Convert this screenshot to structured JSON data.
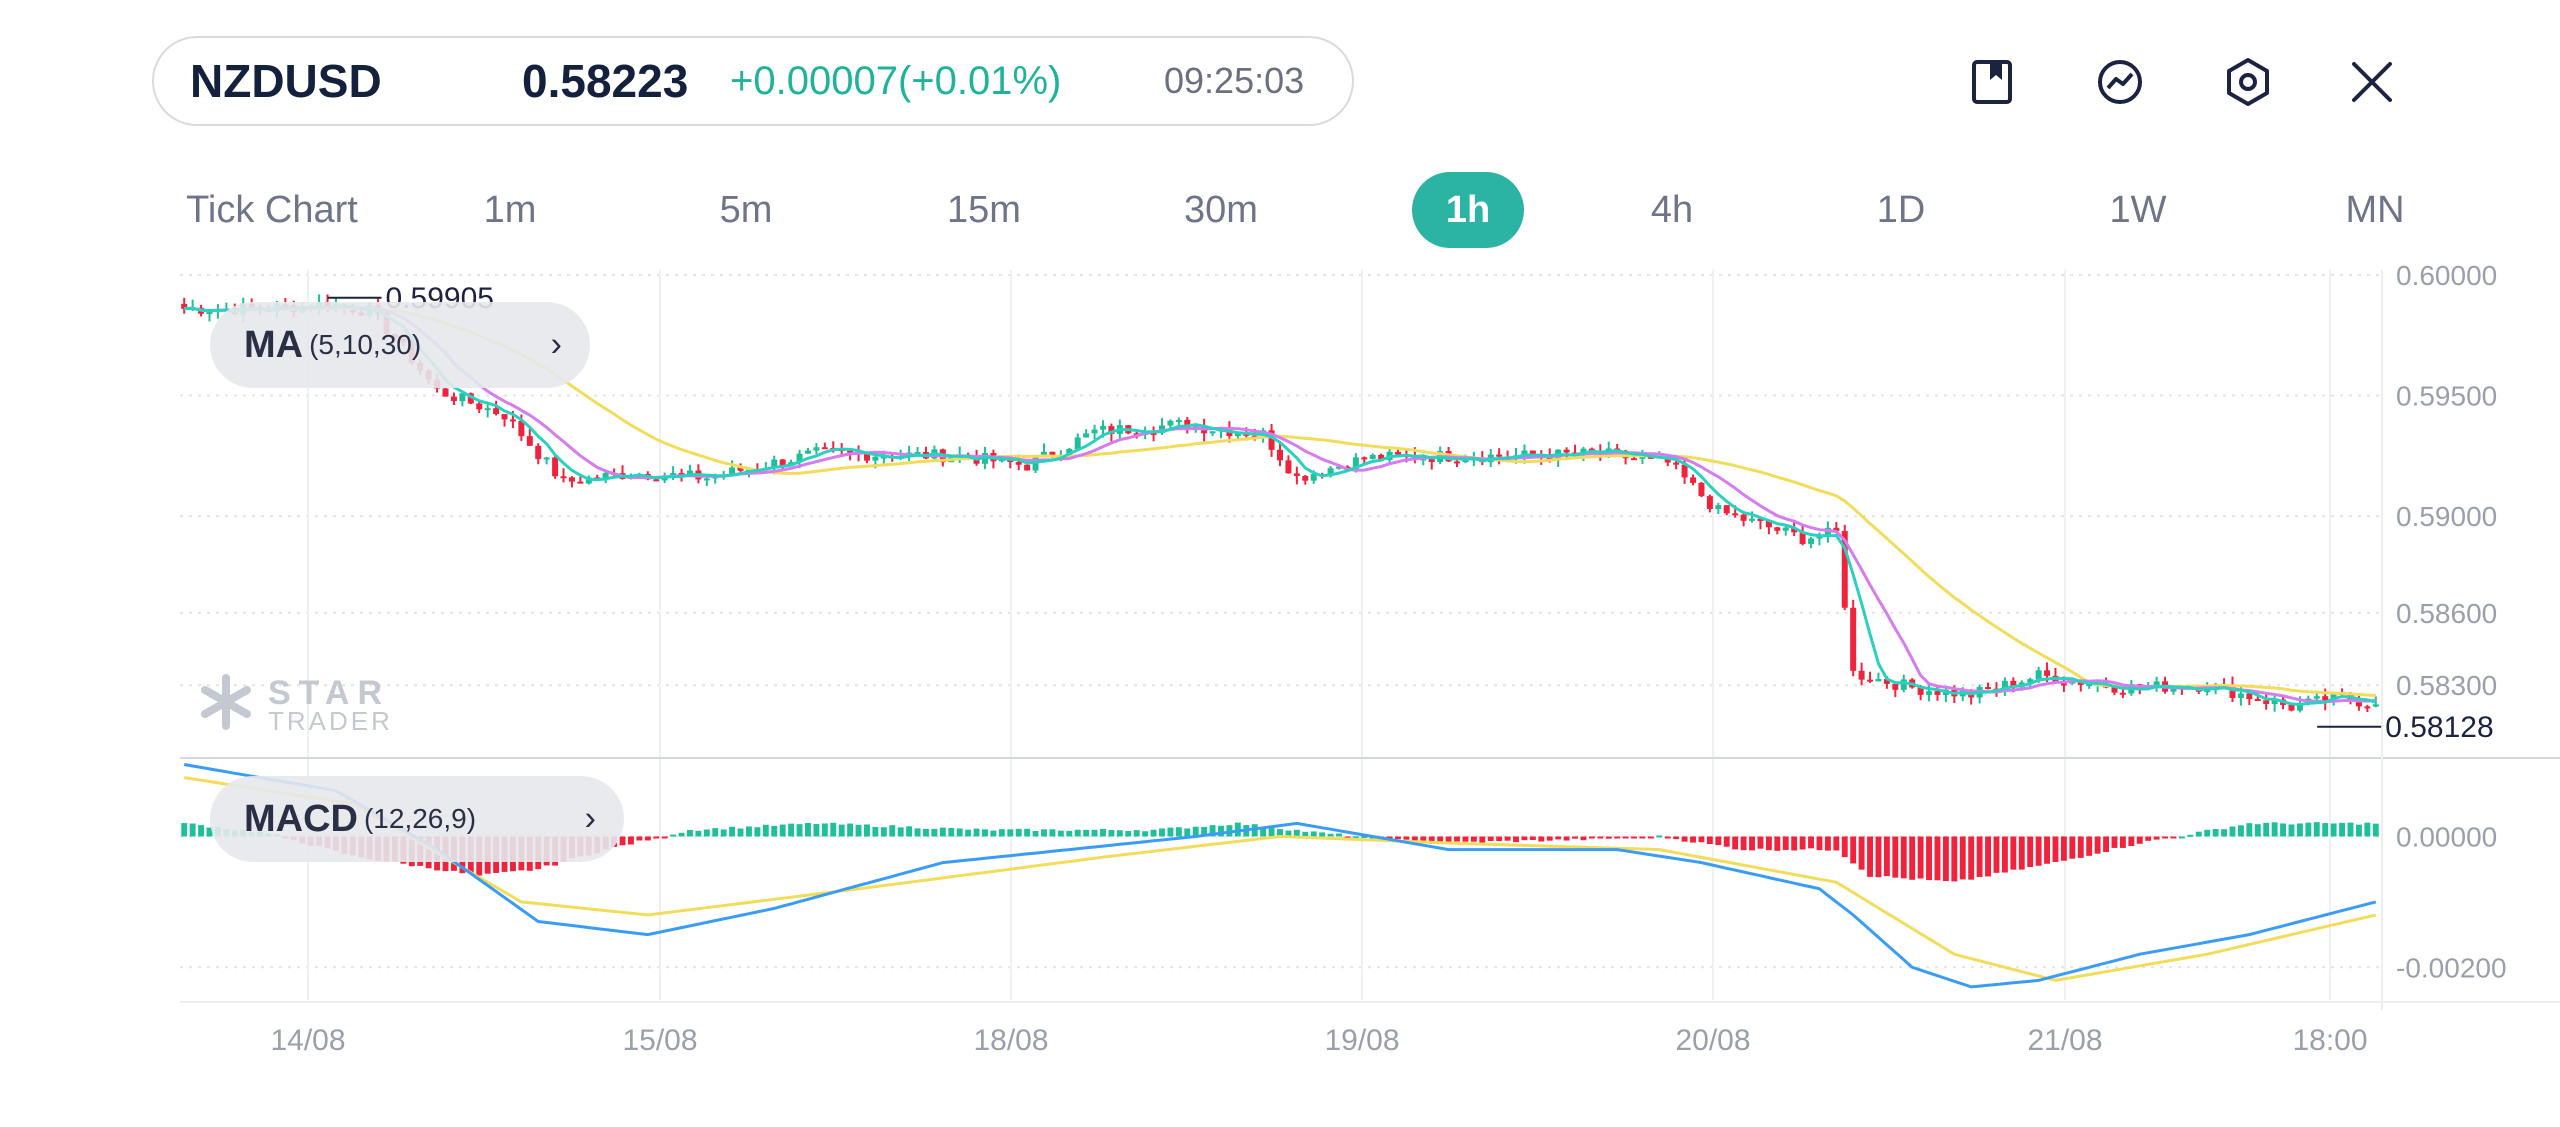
{
  "header": {
    "symbol": "NZDUSD",
    "price": "0.58223",
    "change": "+0.00007(+0.01%)",
    "time": "09:25:03"
  },
  "toolbar_icons": [
    "bookmark-icon",
    "indicator-icon",
    "settings-icon",
    "close-icon"
  ],
  "timeframes": [
    {
      "label": "Tick Chart",
      "active": false
    },
    {
      "label": "1m",
      "active": false
    },
    {
      "label": "5m",
      "active": false
    },
    {
      "label": "15m",
      "active": false
    },
    {
      "label": "30m",
      "active": false
    },
    {
      "label": "1h",
      "active": true
    },
    {
      "label": "4h",
      "active": false
    },
    {
      "label": "1D",
      "active": false
    },
    {
      "label": "1W",
      "active": false
    },
    {
      "label": "MN",
      "active": false
    }
  ],
  "indicators": {
    "ma": {
      "name": "MA",
      "params": "(5,10,30)"
    },
    "macd": {
      "name": "MACD",
      "params": "(12,26,9)"
    }
  },
  "watermark": {
    "line1": "STAR",
    "line2": "TRADER"
  },
  "colors": {
    "up": "#1fbf9a",
    "down": "#f0233d",
    "ma5": "#2ad0c0",
    "ma10": "#d47cf0",
    "ma30": "#f2dc5c",
    "dif": "#3a9cf5",
    "dea": "#f2dc5c",
    "accent": "#2bb3a4",
    "grid": "#e2e4e8"
  },
  "chart_data": [
    {
      "type": "candlestick",
      "title": "",
      "y_ticks": [
        "0.60000",
        "0.59500",
        "0.59000",
        "0.58600",
        "0.58300"
      ],
      "ylim": [
        0.5804,
        0.6002
      ],
      "x_ticks": [
        "14/08",
        "15/08",
        "18/08",
        "19/08",
        "20/08",
        "21/08",
        "18:00"
      ],
      "annotations": {
        "high": "0.59905",
        "low": "0.58128"
      },
      "close_anchors": [
        [
          0,
          0.5986
        ],
        [
          10,
          0.5986
        ],
        [
          17,
          0.5988
        ],
        [
          22,
          0.5985
        ],
        [
          25,
          0.5974
        ],
        [
          30,
          0.5952
        ],
        [
          38,
          0.5942
        ],
        [
          45,
          0.5914
        ],
        [
          53,
          0.5918
        ],
        [
          62,
          0.5916
        ],
        [
          75,
          0.5926
        ],
        [
          92,
          0.5925
        ],
        [
          100,
          0.5921
        ],
        [
          108,
          0.5935
        ],
        [
          118,
          0.5938
        ],
        [
          128,
          0.5934
        ],
        [
          132,
          0.5916
        ],
        [
          140,
          0.5924
        ],
        [
          150,
          0.5925
        ],
        [
          160,
          0.5925
        ],
        [
          168,
          0.5926
        ],
        [
          176,
          0.5922
        ],
        [
          182,
          0.5902
        ],
        [
          192,
          0.5891
        ],
        [
          196,
          0.5893
        ],
        [
          198,
          0.5835
        ],
        [
          205,
          0.5829
        ],
        [
          212,
          0.5826
        ],
        [
          220,
          0.5834
        ],
        [
          230,
          0.5829
        ],
        [
          240,
          0.583
        ],
        [
          250,
          0.5821
        ],
        [
          256,
          0.5825
        ],
        [
          260,
          0.5822
        ]
      ],
      "series": [
        {
          "name": "MA",
          "params": "5,10,30"
        }
      ]
    },
    {
      "type": "bar",
      "title": "",
      "y_ticks": [
        "0.00000",
        "-0.00200"
      ],
      "ylim": [
        -0.0025,
        0.0012
      ],
      "dif_anchors": [
        [
          0,
          0.0011
        ],
        [
          18,
          0.0007
        ],
        [
          30,
          -0.0002
        ],
        [
          42,
          -0.0013
        ],
        [
          55,
          -0.0015
        ],
        [
          70,
          -0.0011
        ],
        [
          90,
          -0.0004
        ],
        [
          105,
          -0.0002
        ],
        [
          120,
          0.0
        ],
        [
          132,
          0.0002
        ],
        [
          150,
          -0.0002
        ],
        [
          160,
          -0.0002
        ],
        [
          170,
          -0.0002
        ],
        [
          180,
          -0.0004
        ],
        [
          194,
          -0.0008
        ],
        [
          198,
          -0.0012
        ],
        [
          205,
          -0.002
        ],
        [
          212,
          -0.0023
        ],
        [
          220,
          -0.0022
        ],
        [
          232,
          -0.0018
        ],
        [
          245,
          -0.0015
        ],
        [
          260,
          -0.001
        ]
      ],
      "dea_anchors": [
        [
          0,
          0.0009
        ],
        [
          20,
          0.0005
        ],
        [
          40,
          -0.001
        ],
        [
          55,
          -0.0012
        ],
        [
          80,
          -0.0008
        ],
        [
          110,
          -0.0003
        ],
        [
          130,
          0.0
        ],
        [
          150,
          -0.0001
        ],
        [
          175,
          -0.0002
        ],
        [
          196,
          -0.0007
        ],
        [
          210,
          -0.0018
        ],
        [
          222,
          -0.0022
        ],
        [
          240,
          -0.0018
        ],
        [
          260,
          -0.0012
        ]
      ],
      "hist_anchors": [
        [
          0,
          0.0002
        ],
        [
          10,
          5e-05
        ],
        [
          20,
          -0.0003
        ],
        [
          35,
          -0.0006
        ],
        [
          42,
          -0.0005
        ],
        [
          50,
          -0.0002
        ],
        [
          60,
          0.0001
        ],
        [
          75,
          0.0002
        ],
        [
          95,
          0.0001
        ],
        [
          115,
          0.0001
        ],
        [
          125,
          0.0002
        ],
        [
          135,
          5e-05
        ],
        [
          148,
          -0.0001
        ],
        [
          165,
          -5e-05
        ],
        [
          175,
          0.0
        ],
        [
          185,
          -0.0002
        ],
        [
          196,
          -0.0002
        ],
        [
          200,
          -0.0006
        ],
        [
          210,
          -0.0007
        ],
        [
          222,
          -0.0004
        ],
        [
          232,
          -0.0001
        ],
        [
          245,
          0.0002
        ],
        [
          260,
          0.0002
        ]
      ]
    }
  ]
}
